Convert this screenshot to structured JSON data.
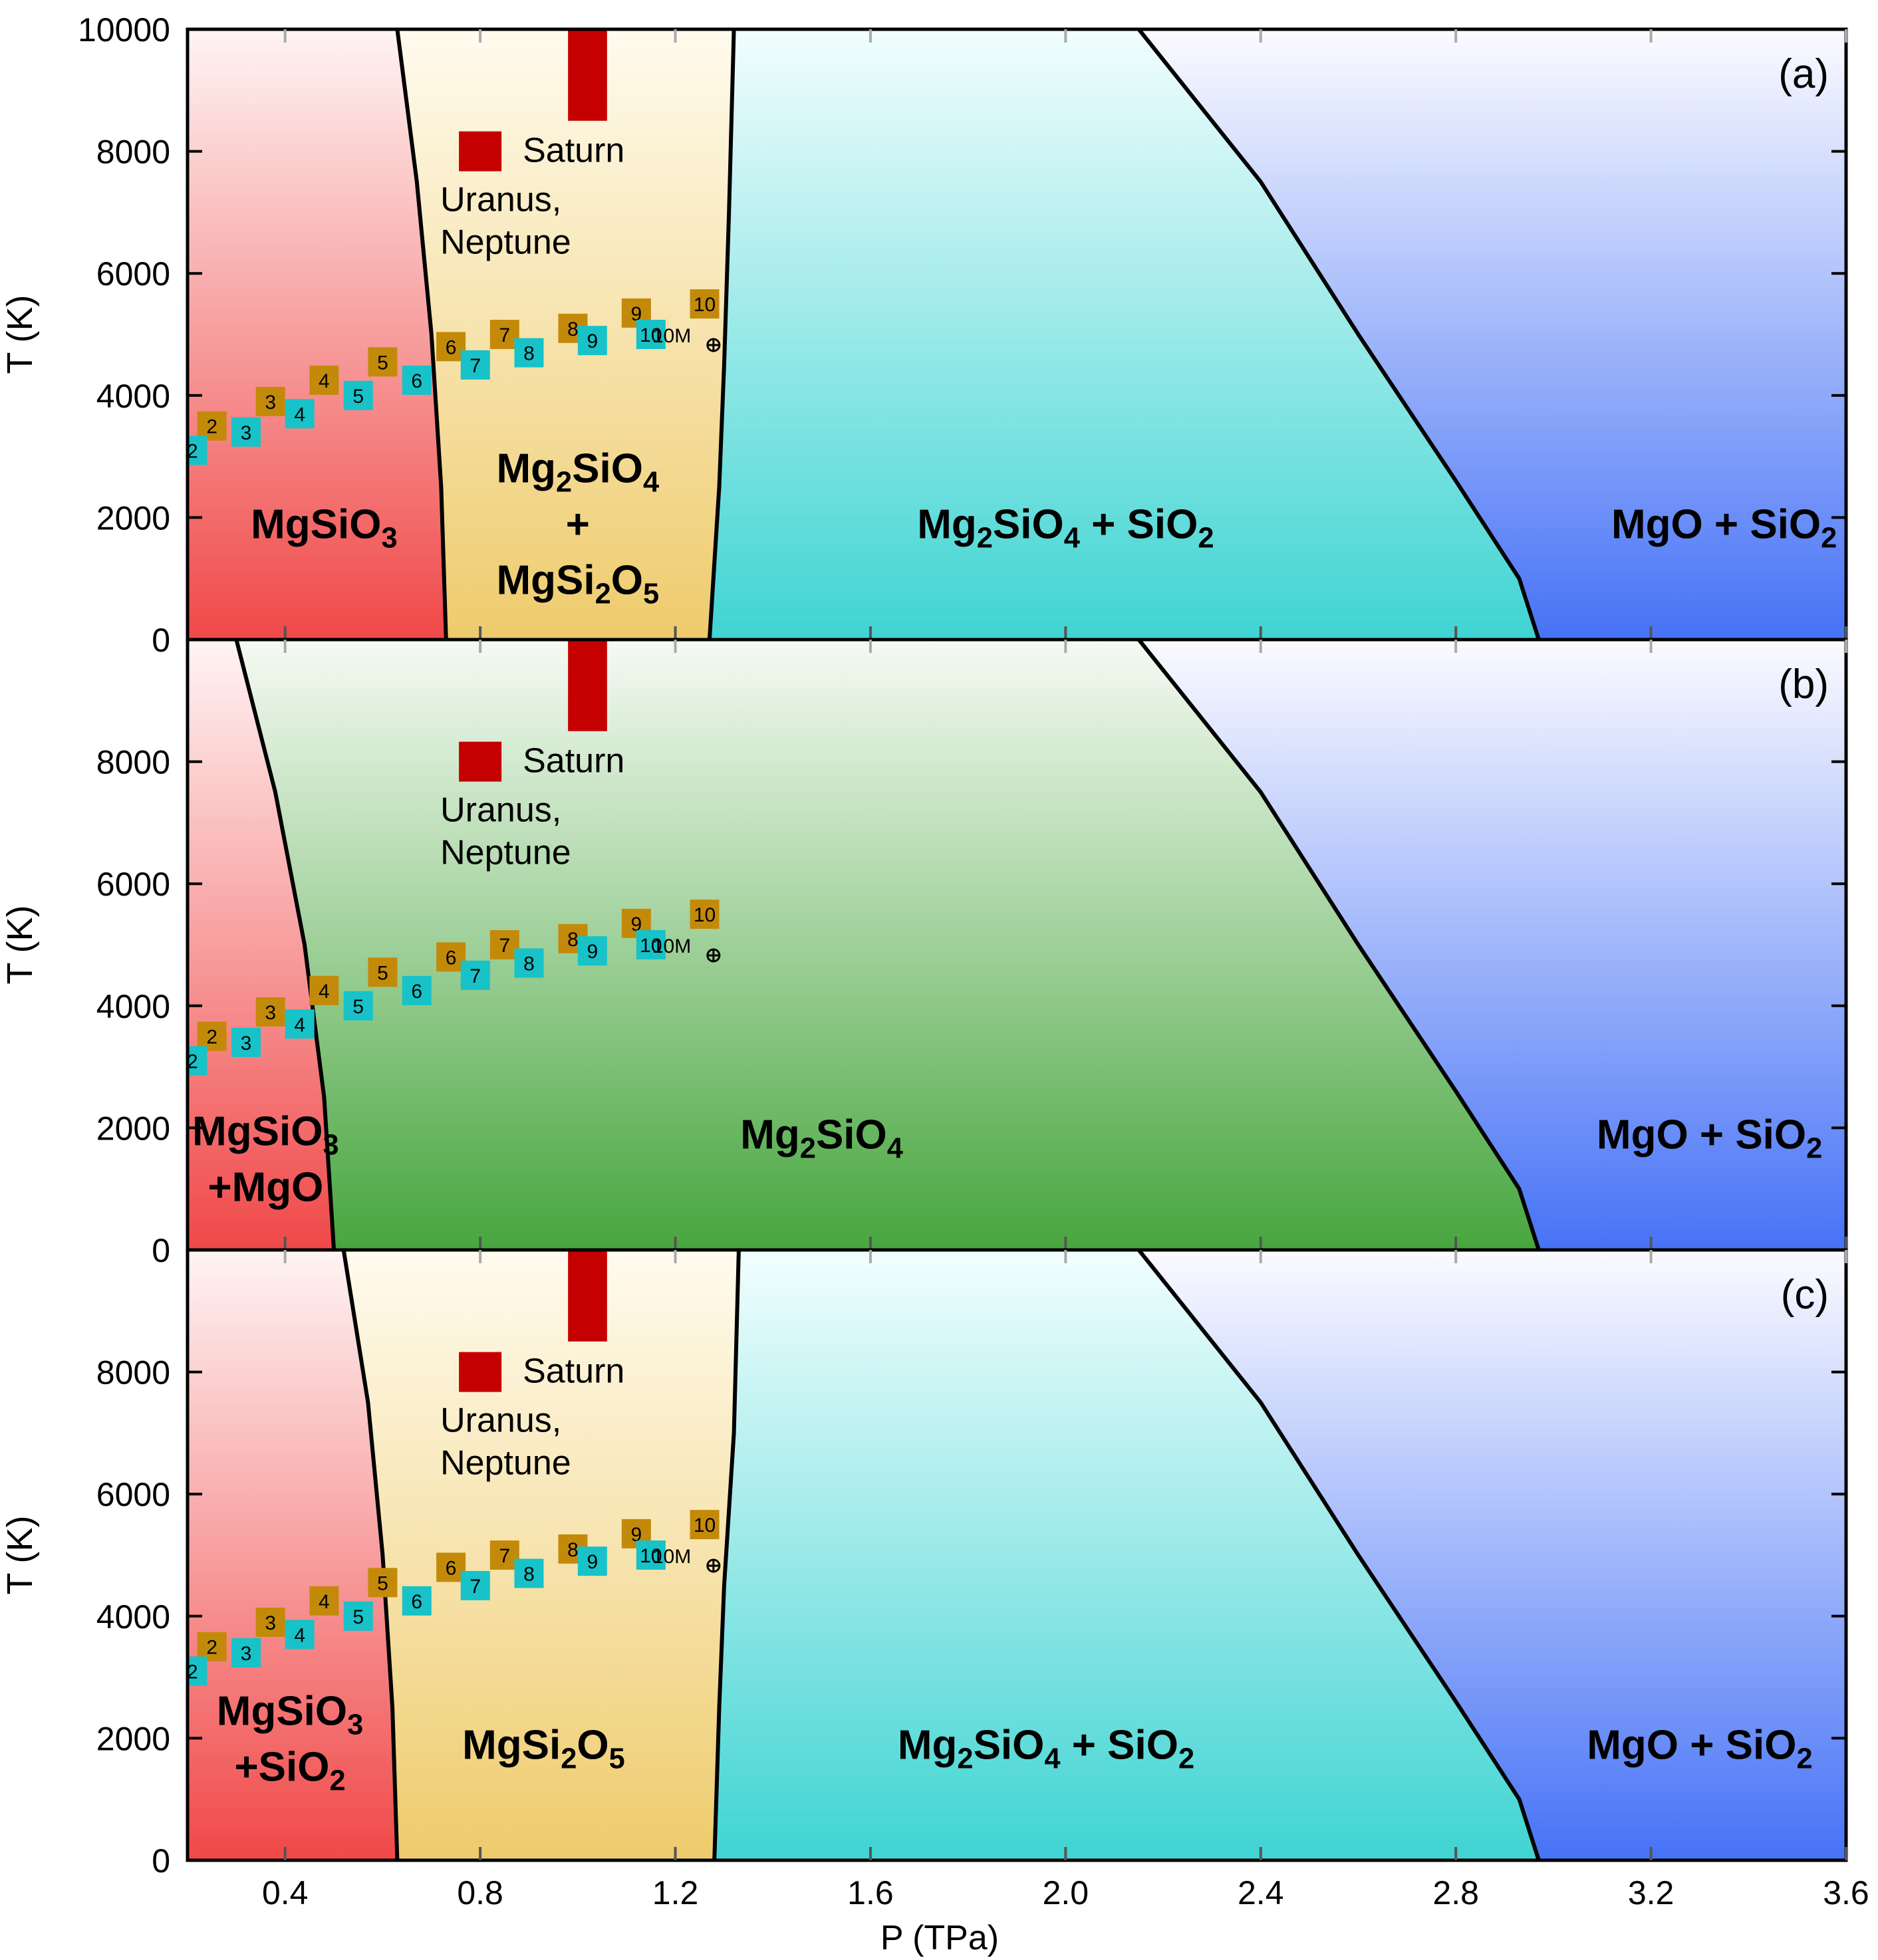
{
  "chart_data": {
    "type": "phase-diagram",
    "xlabel": "P (TPa)",
    "ylabel": "T (K)",
    "xlim": [
      0.2,
      3.6
    ],
    "ylim": [
      0,
      10000
    ],
    "xticks": [
      "0.4",
      "0.8",
      "1.2",
      "1.6",
      "2.0",
      "2.4",
      "2.8",
      "3.2",
      "3.6"
    ],
    "xtick_values": [
      0.4,
      0.8,
      1.2,
      1.6,
      2.0,
      2.4,
      2.8,
      3.2,
      3.6
    ],
    "yticks_top": [
      "0",
      "2000",
      "4000",
      "6000",
      "8000",
      "10000"
    ],
    "yticks": [
      "0",
      "2000",
      "4000",
      "6000",
      "8000"
    ],
    "ytick_values": [
      0,
      2000,
      4000,
      6000,
      8000,
      10000
    ],
    "colors": {
      "red": "#f04848",
      "yellow": "#eecb6c",
      "cyan": "#3fd4d2",
      "blue": "#4672f6",
      "green": "#47a63e",
      "marker_red": "#c40000",
      "marker_gold": "#c38a0a",
      "marker_cyan": "#17c2c8"
    },
    "shared": {
      "saturn_label": "Saturn",
      "uranus_label_line1": "Uranus,",
      "uranus_label_line2": "Neptune",
      "mass_label": "10M",
      "saturn_bar": {
        "p_range": [
          0.98,
          1.06
        ],
        "t_range": [
          8500,
          10000
        ]
      },
      "uranus_marker": {
        "p": 0.8,
        "t": 8000
      },
      "gold_series": [
        {
          "label": "2",
          "p": 0.25,
          "t": 3500
        },
        {
          "label": "3",
          "p": 0.37,
          "t": 3900
        },
        {
          "label": "4",
          "p": 0.48,
          "t": 4250
        },
        {
          "label": "5",
          "p": 0.6,
          "t": 4550
        },
        {
          "label": "6",
          "p": 0.74,
          "t": 4800
        },
        {
          "label": "7",
          "p": 0.85,
          "t": 5000
        },
        {
          "label": "8",
          "p": 0.99,
          "t": 5100
        },
        {
          "label": "9",
          "p": 1.12,
          "t": 5350
        },
        {
          "label": "10",
          "p": 1.26,
          "t": 5500
        }
      ],
      "cyan_series": [
        {
          "label": "2",
          "p": 0.21,
          "t": 3100
        },
        {
          "label": "3",
          "p": 0.32,
          "t": 3400
        },
        {
          "label": "4",
          "p": 0.43,
          "t": 3700
        },
        {
          "label": "5",
          "p": 0.55,
          "t": 4000
        },
        {
          "label": "6",
          "p": 0.67,
          "t": 4250
        },
        {
          "label": "7",
          "p": 0.79,
          "t": 4500
        },
        {
          "label": "8",
          "p": 0.9,
          "t": 4700
        },
        {
          "label": "9",
          "p": 1.03,
          "t": 4900
        },
        {
          "label": "10",
          "p": 1.15,
          "t": 5000
        }
      ]
    },
    "panels": [
      {
        "panel_label": "(a)",
        "boundaries": [
          [
            [
              0.63,
              10000
            ],
            [
              0.67,
              7500
            ],
            [
              0.7,
              5000
            ],
            [
              0.72,
              2500
            ],
            [
              0.73,
              0
            ]
          ],
          [
            [
              1.32,
              10000
            ],
            [
              1.31,
              7000
            ],
            [
              1.3,
              4500
            ],
            [
              1.29,
              2500
            ],
            [
              1.27,
              0
            ]
          ],
          [
            [
              2.15,
              10000
            ],
            [
              2.4,
              7500
            ],
            [
              2.6,
              5000
            ],
            [
              2.8,
              2600
            ],
            [
              2.93,
              1000
            ],
            [
              2.97,
              0
            ]
          ]
        ],
        "regions": [
          {
            "color": "red",
            "parts": [
              {
                "t": "MgSiO"
              },
              {
                "sub": "3"
              }
            ],
            "p": 0.48,
            "tt": 1900
          },
          {
            "color": "yellow",
            "lines": [
              [
                {
                  "t": "Mg"
                },
                {
                  "sub": "2"
                },
                {
                  "t": "SiO"
                },
                {
                  "sub": "4"
                }
              ],
              [
                {
                  "t": "+"
                }
              ],
              [
                {
                  "t": "MgSi"
                },
                {
                  "sub": "2"
                },
                {
                  "t": "O"
                },
                {
                  "sub": "5"
                }
              ]
            ],
            "p": 1.0,
            "tt": 1900
          },
          {
            "color": "cyan",
            "parts": [
              {
                "t": "Mg"
              },
              {
                "sub": "2"
              },
              {
                "t": "SiO"
              },
              {
                "sub": "4"
              },
              {
                "t": " + SiO"
              },
              {
                "sub": "2"
              }
            ],
            "p": 2.0,
            "tt": 1900
          },
          {
            "color": "blue",
            "parts": [
              {
                "t": "MgO + SiO"
              },
              {
                "sub": "2"
              }
            ],
            "p": 3.35,
            "tt": 1900
          }
        ]
      },
      {
        "panel_label": "(b)",
        "boundaries": [
          [
            [
              0.3,
              10000
            ],
            [
              0.38,
              7500
            ],
            [
              0.44,
              5000
            ],
            [
              0.48,
              2500
            ],
            [
              0.5,
              0
            ]
          ],
          [
            [
              2.15,
              10000
            ],
            [
              2.4,
              7500
            ],
            [
              2.6,
              5000
            ],
            [
              2.8,
              2600
            ],
            [
              2.93,
              1000
            ],
            [
              2.97,
              0
            ]
          ]
        ],
        "regions": [
          {
            "color": "red",
            "lines": [
              [
                {
                  "t": "MgSiO"
                },
                {
                  "sub": "3"
                }
              ],
              [
                {
                  "t": "+MgO"
                }
              ]
            ],
            "p": 0.36,
            "tt": 1500
          },
          {
            "color": "green",
            "parts": [
              {
                "t": "Mg"
              },
              {
                "sub": "2"
              },
              {
                "t": "SiO"
              },
              {
                "sub": "4"
              }
            ],
            "p": 1.5,
            "tt": 1900
          },
          {
            "color": "blue",
            "parts": [
              {
                "t": "MgO + SiO"
              },
              {
                "sub": "2"
              }
            ],
            "p": 3.32,
            "tt": 1900
          }
        ]
      },
      {
        "panel_label": "(c)",
        "boundaries": [
          [
            [
              0.52,
              10000
            ],
            [
              0.57,
              7500
            ],
            [
              0.6,
              5000
            ],
            [
              0.62,
              2500
            ],
            [
              0.63,
              0
            ]
          ],
          [
            [
              1.33,
              10000
            ],
            [
              1.32,
              7000
            ],
            [
              1.3,
              4500
            ],
            [
              1.29,
              2500
            ],
            [
              1.28,
              0
            ]
          ],
          [
            [
              2.15,
              10000
            ],
            [
              2.4,
              7500
            ],
            [
              2.6,
              5000
            ],
            [
              2.8,
              2600
            ],
            [
              2.93,
              1000
            ],
            [
              2.97,
              0
            ]
          ]
        ],
        "regions": [
          {
            "color": "red",
            "lines": [
              [
                {
                  "t": "MgSiO"
                },
                {
                  "sub": "3"
                }
              ],
              [
                {
                  "t": "+SiO"
                },
                {
                  "sub": "2"
                }
              ]
            ],
            "p": 0.41,
            "tt": 2000
          },
          {
            "color": "yellow",
            "parts": [
              {
                "t": "MgSi"
              },
              {
                "sub": "2"
              },
              {
                "t": "O"
              },
              {
                "sub": "5"
              }
            ],
            "p": 0.93,
            "tt": 1900
          },
          {
            "color": "cyan",
            "parts": [
              {
                "t": "Mg"
              },
              {
                "sub": "2"
              },
              {
                "t": "SiO"
              },
              {
                "sub": "4"
              },
              {
                "t": " + SiO"
              },
              {
                "sub": "2"
              }
            ],
            "p": 1.96,
            "tt": 1900
          },
          {
            "color": "blue",
            "parts": [
              {
                "t": "MgO + SiO"
              },
              {
                "sub": "2"
              }
            ],
            "p": 3.3,
            "tt": 1900
          }
        ]
      }
    ]
  }
}
